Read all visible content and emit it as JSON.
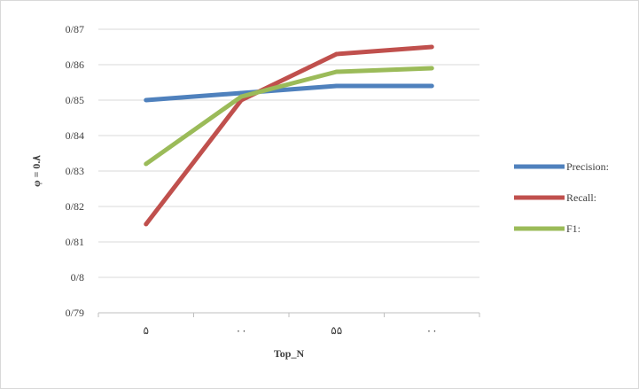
{
  "chart_data": {
    "type": "line",
    "title": "",
    "xlabel": "Top_N",
    "ylabel": "φ = 0.٨",
    "categories": [
      "۵",
      "۰۰",
      "۵۵",
      "۰۰"
    ],
    "y_tick_labels": [
      "0/79",
      "0/8",
      "0/81",
      "0/82",
      "0/83",
      "0/84",
      "0/85",
      "0/86",
      "0/87"
    ],
    "ylim": [
      0.79,
      0.87
    ],
    "grid": true,
    "legend_position": "right",
    "series": [
      {
        "name": "Precision:",
        "color": "#4f81bd",
        "values": [
          0.85,
          0.852,
          0.854,
          0.854
        ]
      },
      {
        "name": "Recall:",
        "color": "#c0504d",
        "values": [
          0.815,
          0.85,
          0.863,
          0.865
        ]
      },
      {
        "name": "F1:",
        "color": "#9bbb59",
        "values": [
          0.832,
          0.851,
          0.858,
          0.859
        ]
      }
    ]
  }
}
